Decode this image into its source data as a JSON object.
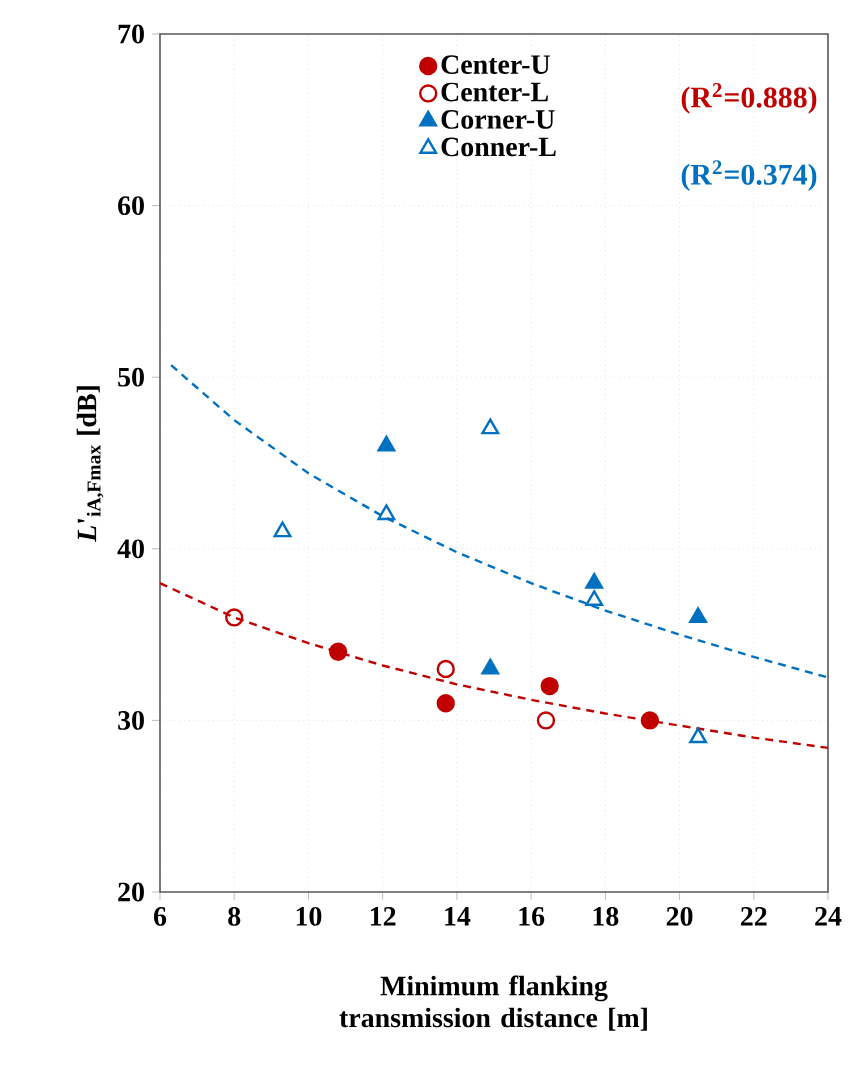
{
  "chart_data": {
    "type": "scatter",
    "xlabel": "Minimum flanking transmission distance [m]",
    "ylabel": "*L*'$_{iA,Fmax}$ [dB]",
    "xlim": [
      6,
      24
    ],
    "xticks": [
      6,
      8,
      10,
      12,
      14,
      16,
      18,
      20,
      22,
      24
    ],
    "ylim": [
      20,
      70
    ],
    "yticks": [
      20,
      30,
      40,
      50,
      60,
      70
    ],
    "grid": true,
    "legend": "top right",
    "series": [
      {
        "name": "Center-U",
        "color": "#c00000",
        "marker": "circle",
        "x": [
          10.8,
          13.7,
          16.5,
          19.2
        ],
        "values": [
          34,
          31,
          32,
          30
        ]
      },
      {
        "name": "Center-L",
        "color": "#c00000",
        "marker": "circle-open",
        "x": [
          8,
          13.7,
          16.4
        ],
        "values": [
          36,
          33,
          30
        ]
      },
      {
        "name": "Corner-U",
        "color": "#0070c0",
        "marker": "triangle",
        "x": [
          12.1,
          14.9,
          17.7,
          20.5
        ],
        "values": [
          46,
          33,
          38,
          36
        ]
      },
      {
        "name": "Conner-L",
        "color": "#0070c0",
        "marker": "triangle-open",
        "x": [
          9.3,
          12.1,
          14.9,
          17.7,
          20.5
        ],
        "values": [
          41,
          42,
          47,
          37,
          29
        ]
      },
      {
        "type": "line",
        "color": "#c00000",
        "line_style": "dashed",
        "marker": "none",
        "x": [
          6,
          8,
          10,
          12,
          14,
          16,
          18,
          20,
          22,
          24
        ],
        "values": [
          38,
          36,
          34.5,
          33.2,
          32.1,
          31.2,
          30.4,
          29.7,
          29,
          28.4
        ]
      },
      {
        "type": "line",
        "color": "#0070c0",
        "line_style": "dashed",
        "marker": "none",
        "x": [
          6.3,
          8,
          10,
          12,
          14,
          16,
          18,
          20,
          22,
          24
        ],
        "values": [
          50.7,
          47.5,
          44.4,
          41.9,
          39.8,
          38,
          36.4,
          35,
          33.7,
          32.5
        ]
      }
    ],
    "annotations": [
      "(R$^{2}$=0.888)",
      "(R$^{2}$=0.374)"
    ]
  }
}
